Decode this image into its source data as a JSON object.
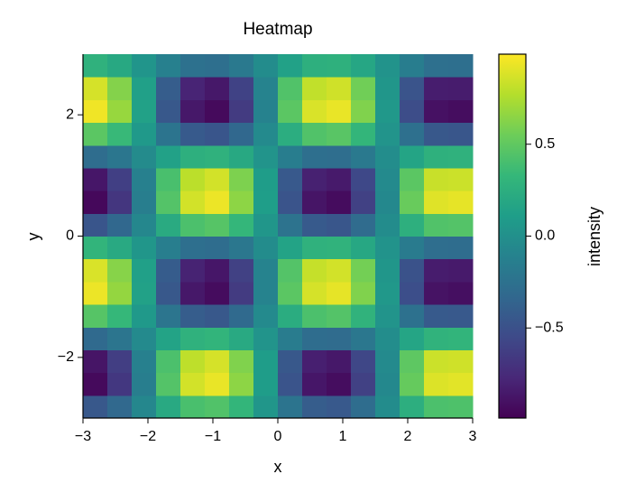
{
  "chart_data": {
    "type": "heatmap",
    "title": "Heatmap",
    "x_label": "x",
    "y_label": "y",
    "colorbar_label": "intensity",
    "colormap": "viridis",
    "x": [
      -2.8125,
      -2.4375,
      -2.0625,
      -1.6875,
      -1.3125,
      -0.9375,
      -0.5625,
      -0.1875,
      0.1875,
      0.5625,
      0.9375,
      1.3125,
      1.6875,
      2.0625,
      2.4375,
      2.8125
    ],
    "y": [
      -2.8125,
      -2.4375,
      -2.0625,
      -1.6875,
      -1.3125,
      -0.9375,
      -0.5625,
      -0.1875,
      0.1875,
      0.5625,
      0.9375,
      1.3125,
      1.6875,
      2.0625,
      2.4375,
      2.8125
    ],
    "z": [
      [
        -0.45,
        -0.32,
        -0.07,
        0.21,
        0.41,
        0.44,
        0.31,
        0.05,
        -0.23,
        -0.41,
        -0.44,
        -0.29,
        -0.03,
        0.25,
        0.42,
        0.43
      ],
      [
        -0.94,
        -0.67,
        -0.14,
        0.45,
        0.86,
        0.93,
        0.65,
        0.1,
        -0.48,
        -0.87,
        -0.92,
        -0.61,
        -0.06,
        0.52,
        0.89,
        0.91
      ],
      [
        -0.88,
        -0.63,
        -0.13,
        0.42,
        0.8,
        0.87,
        0.61,
        0.1,
        -0.45,
        -0.82,
        -0.86,
        -0.57,
        -0.05,
        0.49,
        0.84,
        0.85
      ],
      [
        -0.31,
        -0.22,
        -0.05,
        0.15,
        0.28,
        0.3,
        0.21,
        0.03,
        -0.16,
        -0.29,
        -0.3,
        -0.2,
        -0.02,
        0.17,
        0.29,
        0.3
      ],
      [
        0.46,
        0.33,
        0.07,
        -0.22,
        -0.41,
        -0.45,
        -0.31,
        -0.05,
        0.23,
        0.42,
        0.45,
        0.29,
        0.03,
        -0.25,
        -0.43,
        -0.44
      ],
      [
        0.94,
        0.67,
        0.14,
        -0.45,
        -0.86,
        -0.93,
        -0.65,
        -0.1,
        0.48,
        0.87,
        0.92,
        0.61,
        0.06,
        -0.52,
        -0.89,
        -0.91
      ],
      [
        0.88,
        0.63,
        0.13,
        -0.42,
        -0.8,
        -0.87,
        -0.61,
        -0.1,
        0.45,
        0.82,
        0.86,
        0.57,
        0.05,
        -0.49,
        -0.84,
        -0.85
      ],
      [
        0.3,
        0.21,
        0.05,
        -0.14,
        -0.27,
        -0.29,
        -0.2,
        -0.03,
        0.15,
        0.28,
        0.29,
        0.19,
        0.02,
        -0.17,
        -0.28,
        -0.29
      ],
      [
        -0.47,
        -0.33,
        -0.07,
        0.22,
        0.42,
        0.46,
        0.32,
        0.05,
        -0.24,
        -0.43,
        -0.46,
        -0.3,
        -0.03,
        0.26,
        0.44,
        0.45
      ],
      [
        -0.95,
        -0.68,
        -0.14,
        0.45,
        0.86,
        0.94,
        0.65,
        0.11,
        -0.48,
        -0.88,
        -0.93,
        -0.61,
        -0.06,
        0.53,
        0.9,
        0.92
      ],
      [
        -0.87,
        -0.62,
        -0.13,
        0.41,
        0.79,
        0.86,
        0.6,
        0.1,
        -0.44,
        -0.81,
        -0.85,
        -0.56,
        -0.05,
        0.48,
        0.83,
        0.84
      ],
      [
        -0.29,
        -0.21,
        -0.04,
        0.14,
        0.26,
        0.28,
        0.2,
        0.03,
        -0.15,
        -0.27,
        -0.28,
        -0.19,
        -0.02,
        0.16,
        0.27,
        0.28
      ],
      [
        0.48,
        0.34,
        0.07,
        -0.23,
        -0.43,
        -0.47,
        -0.33,
        -0.05,
        0.24,
        0.44,
        0.47,
        0.31,
        0.03,
        -0.26,
        -0.45,
        -0.46
      ],
      [
        0.95,
        0.68,
        0.14,
        -0.45,
        -0.86,
        -0.94,
        -0.65,
        -0.11,
        0.48,
        0.88,
        0.93,
        0.61,
        0.06,
        -0.53,
        -0.9,
        -0.92
      ],
      [
        0.87,
        0.62,
        0.13,
        -0.41,
        -0.79,
        -0.86,
        -0.6,
        -0.1,
        0.44,
        0.81,
        0.85,
        0.56,
        0.05,
        -0.48,
        -0.83,
        -0.84
      ],
      [
        0.28,
        0.2,
        0.04,
        -0.13,
        -0.25,
        -0.27,
        -0.19,
        -0.03,
        0.14,
        0.26,
        0.27,
        0.18,
        0.02,
        -0.15,
        -0.26,
        -0.27
      ]
    ],
    "xlim": [
      -3,
      3
    ],
    "ylim": [
      -3,
      3
    ],
    "zlim": [
      -0.99,
      0.99
    ],
    "xticks": [
      {
        "value": -3,
        "label": "−3"
      },
      {
        "value": -2,
        "label": "−2"
      },
      {
        "value": -1,
        "label": "−1"
      },
      0,
      1,
      2,
      3
    ],
    "yticks": [
      {
        "value": -2,
        "label": "−2"
      },
      0,
      2
    ],
    "zticks": [
      {
        "value": -0.5,
        "label": "−0.5"
      },
      {
        "value": 0,
        "label": "0.0"
      },
      0.5
    ]
  }
}
